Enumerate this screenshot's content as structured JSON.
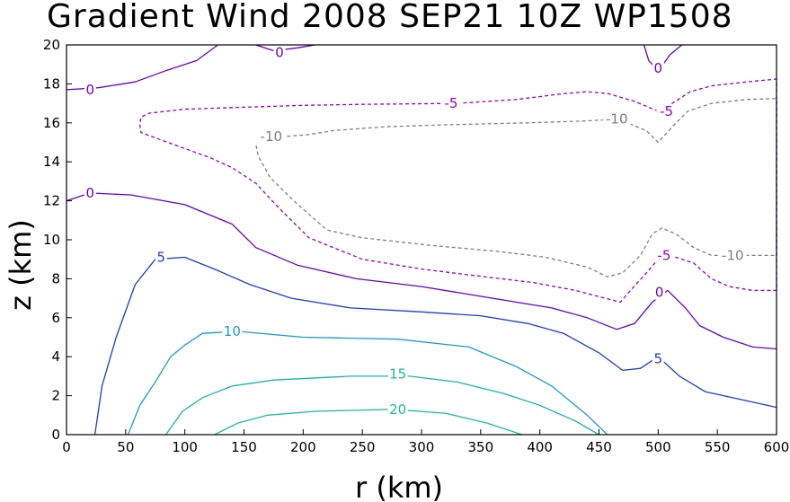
{
  "chart_data": {
    "type": "contour",
    "title": "Gradient Wind 2008 SEP21 10Z  WP1508",
    "xlabel": "r (km)",
    "ylabel": "z (km)",
    "xlim": [
      0,
      600
    ],
    "ylim": [
      0,
      20
    ],
    "xticks": [
      0,
      50,
      100,
      150,
      200,
      250,
      300,
      350,
      400,
      450,
      500,
      550,
      600
    ],
    "yticks": [
      0,
      2,
      4,
      6,
      8,
      10,
      12,
      14,
      16,
      18,
      20
    ],
    "x_tick_labels": [
      "0",
      "50",
      "100",
      "150",
      "200",
      "250",
      "300",
      "350",
      "400",
      "450",
      "500",
      "550",
      "600"
    ],
    "y_tick_labels": [
      "0",
      "2",
      "4",
      "6",
      "8",
      "10",
      "12",
      "14",
      "16",
      "18",
      "20"
    ],
    "grid": false,
    "contours": [
      {
        "level": -10,
        "label": "-10",
        "color": "#808080",
        "style": "dashed",
        "points": [
          [
            466,
            16.2
          ],
          [
            490,
            15.6
          ],
          [
            500,
            15.0
          ],
          [
            512,
            15.8
          ],
          [
            525,
            16.6
          ],
          [
            545,
            17.0
          ],
          [
            575,
            17.2
          ],
          [
            600,
            17.25
          ],
          [
            600,
            9.2
          ],
          [
            570,
            9.2
          ],
          [
            545,
            9.2
          ],
          [
            530,
            9.6
          ],
          [
            515,
            10.3
          ],
          [
            503,
            10.6
          ],
          [
            495,
            10.3
          ],
          [
            485,
            9.2
          ],
          [
            470,
            8.3
          ],
          [
            457,
            8.1
          ],
          [
            440,
            8.6
          ],
          [
            405,
            9.1
          ],
          [
            365,
            9.4
          ],
          [
            310,
            9.7
          ],
          [
            250,
            10.1
          ],
          [
            220,
            10.5
          ],
          [
            192,
            12.0
          ],
          [
            172,
            13.2
          ],
          [
            162,
            14.3
          ],
          [
            160,
            14.9
          ],
          [
            167,
            15.2
          ],
          [
            185,
            15.3
          ],
          [
            205,
            15.4
          ],
          [
            225,
            15.6
          ],
          [
            270,
            15.8
          ],
          [
            320,
            15.9
          ],
          [
            390,
            16.0
          ],
          [
            440,
            16.1
          ],
          [
            466,
            16.2
          ]
        ],
        "labels": [
          {
            "text": "-10",
            "x": 465,
            "y": 16.2
          },
          {
            "text": "-10",
            "x": 173,
            "y": 15.3
          },
          {
            "text": "-10",
            "x": 563,
            "y": 9.2
          }
        ]
      },
      {
        "level": -5,
        "label": "-5",
        "color": "#9900cc",
        "style": "dashed",
        "points": [
          [
            330,
            17.0
          ],
          [
            380,
            17.2
          ],
          [
            420,
            17.5
          ],
          [
            440,
            17.6
          ],
          [
            458,
            17.5
          ],
          [
            480,
            17.1
          ],
          [
            500,
            16.6
          ],
          [
            512,
            17.0
          ],
          [
            527,
            17.6
          ],
          [
            545,
            17.9
          ],
          [
            575,
            18.1
          ],
          [
            600,
            18.25
          ],
          [
            600,
            7.4
          ],
          [
            580,
            7.4
          ],
          [
            560,
            7.6
          ],
          [
            545,
            8.0
          ],
          [
            530,
            8.8
          ],
          [
            515,
            9.1
          ],
          [
            500,
            9.0
          ],
          [
            490,
            8.3
          ],
          [
            478,
            7.5
          ],
          [
            468,
            6.8
          ],
          [
            455,
            7.0
          ],
          [
            430,
            7.4
          ],
          [
            395,
            7.8
          ],
          [
            340,
            8.2
          ],
          [
            300,
            8.5
          ],
          [
            250,
            9.0
          ],
          [
            205,
            10.1
          ],
          [
            180,
            11.6
          ],
          [
            160,
            12.9
          ],
          [
            140,
            13.7
          ],
          [
            122,
            14.2
          ],
          [
            90,
            14.9
          ],
          [
            63,
            15.5
          ],
          [
            62,
            15.9
          ],
          [
            63,
            16.3
          ],
          [
            70,
            16.5
          ],
          [
            100,
            16.7
          ],
          [
            150,
            16.8
          ],
          [
            200,
            16.9
          ],
          [
            250,
            16.95
          ],
          [
            330,
            17.0
          ]
        ],
        "labels": [
          {
            "text": "-5",
            "x": 325,
            "y": 17.0
          },
          {
            "text": "-5",
            "x": 507,
            "y": 16.6
          },
          {
            "text": "-5",
            "x": 505,
            "y": 9.2
          }
        ]
      },
      {
        "level": 0,
        "label": "0",
        "color": "#6600cc",
        "style": "solid",
        "points": [
          [
            0,
            17.7
          ],
          [
            27,
            17.8
          ],
          [
            58,
            18.1
          ],
          [
            85,
            18.7
          ],
          [
            110,
            19.2
          ],
          [
            128,
            20.0
          ]
        ],
        "labels": [
          {
            "text": "0",
            "x": 20,
            "y": 17.7
          }
        ]
      },
      {
        "level": 0,
        "label": "0",
        "color": "#6600cc",
        "style": "solid",
        "points": [
          [
            160,
            20.0
          ],
          [
            175,
            19.7
          ],
          [
            195,
            19.85
          ],
          [
            210,
            20.0
          ]
        ],
        "labels": [
          {
            "text": "0",
            "x": 180,
            "y": 19.6
          }
        ]
      },
      {
        "level": 0,
        "label": "0",
        "color": "#6600cc",
        "style": "solid",
        "points": [
          [
            488,
            20.0
          ],
          [
            492,
            19.2
          ],
          [
            498,
            18.8
          ],
          [
            503,
            18.9
          ],
          [
            510,
            19.5
          ],
          [
            520,
            20.0
          ]
        ],
        "labels": [
          {
            "text": "0",
            "x": 500,
            "y": 18.8
          }
        ]
      },
      {
        "level": 0,
        "label": "0",
        "color": "#6600cc",
        "style": "solid",
        "points": [
          [
            0,
            12.0
          ],
          [
            20,
            12.4
          ],
          [
            55,
            12.3
          ],
          [
            100,
            11.8
          ],
          [
            140,
            10.8
          ],
          [
            160,
            9.6
          ],
          [
            195,
            8.7
          ],
          [
            245,
            8.0
          ],
          [
            300,
            7.6
          ],
          [
            360,
            7.0
          ],
          [
            410,
            6.5
          ],
          [
            440,
            6.0
          ],
          [
            465,
            5.4
          ],
          [
            480,
            5.7
          ],
          [
            495,
            6.8
          ],
          [
            508,
            7.4
          ],
          [
            523,
            6.5
          ],
          [
            535,
            5.6
          ],
          [
            555,
            5.0
          ],
          [
            580,
            4.5
          ],
          [
            600,
            4.4
          ]
        ],
        "labels": [
          {
            "text": "0",
            "x": 20,
            "y": 12.4
          },
          {
            "text": "0",
            "x": 501,
            "y": 7.3
          }
        ]
      },
      {
        "level": 5,
        "label": "5",
        "color": "#1f3bd6",
        "style": "solid",
        "points": [
          [
            24,
            0.0
          ],
          [
            30,
            2.5
          ],
          [
            42,
            5.0
          ],
          [
            58,
            7.7
          ],
          [
            75,
            9.0
          ],
          [
            100,
            9.1
          ],
          [
            125,
            8.5
          ],
          [
            155,
            7.7
          ],
          [
            190,
            7.0
          ],
          [
            240,
            6.5
          ],
          [
            300,
            6.3
          ],
          [
            350,
            6.1
          ],
          [
            390,
            5.7
          ],
          [
            420,
            5.2
          ],
          [
            450,
            4.2
          ],
          [
            470,
            3.3
          ],
          [
            485,
            3.4
          ],
          [
            500,
            4.0
          ],
          [
            518,
            3.0
          ],
          [
            540,
            2.2
          ],
          [
            570,
            1.8
          ],
          [
            600,
            1.4
          ]
        ],
        "labels": [
          {
            "text": "5",
            "x": 80,
            "y": 9.1
          },
          {
            "text": "5",
            "x": 500,
            "y": 3.9
          }
        ]
      },
      {
        "level": 10,
        "label": "10",
        "color": "#1a9ad6",
        "style": "solid",
        "points": [
          [
            52,
            0.0
          ],
          [
            62,
            1.5
          ],
          [
            76,
            2.8
          ],
          [
            88,
            4.0
          ],
          [
            100,
            4.6
          ],
          [
            115,
            5.2
          ],
          [
            145,
            5.3
          ],
          [
            200,
            5.0
          ],
          [
            280,
            4.9
          ],
          [
            340,
            4.5
          ],
          [
            380,
            3.5
          ],
          [
            410,
            2.5
          ],
          [
            440,
            1.0
          ],
          [
            457,
            0.0
          ]
        ],
        "labels": [
          {
            "text": "10",
            "x": 140,
            "y": 5.3
          }
        ]
      },
      {
        "level": 15,
        "label": "15",
        "color": "#19b7a8",
        "style": "solid",
        "points": [
          [
            84,
            0.0
          ],
          [
            98,
            1.2
          ],
          [
            115,
            1.9
          ],
          [
            140,
            2.5
          ],
          [
            175,
            2.8
          ],
          [
            240,
            3.0
          ],
          [
            290,
            3.0
          ],
          [
            330,
            2.7
          ],
          [
            370,
            2.1
          ],
          [
            400,
            1.5
          ],
          [
            430,
            0.7
          ],
          [
            450,
            0.0
          ]
        ],
        "labels": [
          {
            "text": "15",
            "x": 280,
            "y": 3.1
          }
        ]
      },
      {
        "level": 20,
        "label": "20",
        "color": "#19c291",
        "style": "solid",
        "points": [
          [
            125,
            0.0
          ],
          [
            145,
            0.6
          ],
          [
            170,
            1.0
          ],
          [
            210,
            1.2
          ],
          [
            275,
            1.3
          ],
          [
            320,
            1.1
          ],
          [
            355,
            0.6
          ],
          [
            385,
            0.0
          ]
        ],
        "labels": [
          {
            "text": "20",
            "x": 280,
            "y": 1.3
          }
        ]
      }
    ]
  }
}
